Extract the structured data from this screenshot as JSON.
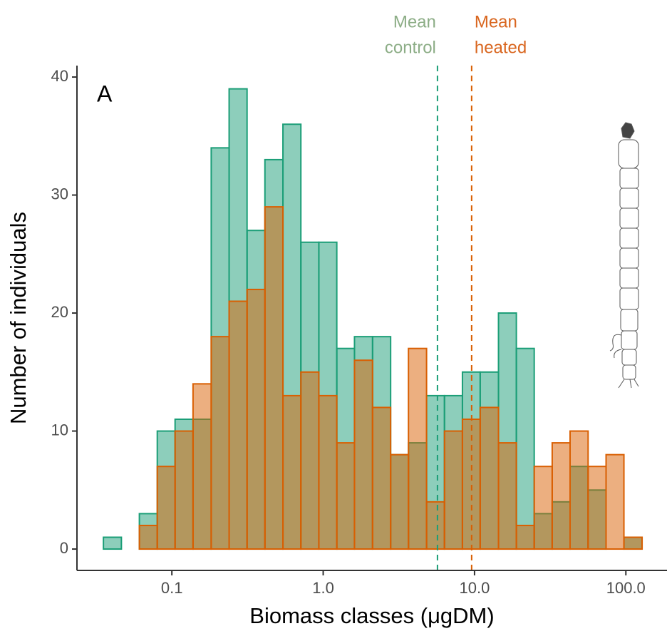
{
  "chart_data": {
    "type": "histogram",
    "panel_label": "A",
    "x_label": "Biomass classes (μgDM)",
    "y_label": "Number of individuals",
    "log_x": true,
    "bins": [
      0.0353,
      0.0464,
      0.061,
      0.0801,
      0.105,
      0.138,
      0.182,
      0.239,
      0.314,
      0.412,
      0.542,
      0.712,
      0.936,
      1.23,
      1.61,
      2.12,
      2.79,
      3.66,
      4.82,
      6.33,
      8.32,
      10.9,
      14.4,
      18.9,
      24.8,
      32.6,
      42.8,
      56.3,
      74.0,
      97.1,
      128
    ],
    "series": [
      {
        "color": "#1b9e77",
        "values": [
          1,
          0,
          3,
          10,
          11,
          11,
          34,
          39,
          27,
          33,
          36,
          26,
          26,
          17,
          18,
          18,
          8,
          9,
          13,
          13,
          15,
          15,
          20,
          17,
          3,
          4,
          7,
          5,
          0,
          1
        ]
      },
      {
        "color": "#d95f02",
        "values": [
          0,
          0,
          2,
          7,
          10,
          14,
          18,
          21,
          22,
          29,
          13,
          15,
          13,
          9,
          16,
          12,
          8,
          17,
          4,
          10,
          11,
          12,
          9,
          2,
          7,
          9,
          10,
          7,
          8,
          1
        ]
      }
    ],
    "mean_lines": [
      {
        "label": [
          "Mean",
          "control"
        ],
        "value": 5.69,
        "color": "#1b9e77",
        "label_color": "#8cad86"
      },
      {
        "label": [
          "Mean",
          "heated"
        ],
        "value": 9.57,
        "color": "#d95f02",
        "label_color": "#d9661f"
      }
    ],
    "xlim": [
      0.0236,
      187
    ],
    "ylim": [
      -1.81,
      40.97
    ],
    "xticks": [
      0.1,
      {
        "value": 1,
        "label": "1.0"
      },
      {
        "value": 10,
        "label": "10.0"
      },
      {
        "value": 100,
        "label": "100.0"
      }
    ],
    "yticks": [
      0,
      10,
      20,
      30,
      40
    ]
  }
}
